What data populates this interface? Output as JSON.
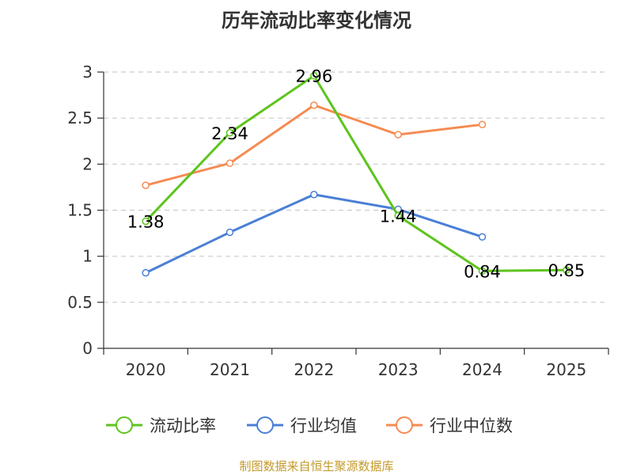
{
  "chart_data": {
    "type": "line",
    "title": "历年流动比率变化情况",
    "categories": [
      "2020",
      "2021",
      "2022",
      "2023",
      "2024",
      "2025"
    ],
    "ylim": [
      0,
      3
    ],
    "yticks": [
      "0",
      "0.5",
      "1",
      "1.5",
      "2",
      "2.5",
      "3"
    ],
    "ytick_values": [
      0,
      0.5,
      1,
      1.5,
      2,
      2.5,
      3
    ],
    "grid": true,
    "legend_position": "bottom",
    "series": [
      {
        "name": "流动比率",
        "color": "#5dc41d",
        "values": [
          1.38,
          2.34,
          2.96,
          1.44,
          0.84,
          0.85
        ],
        "labels": [
          "1.38",
          "2.34",
          "2.96",
          "1.44",
          "0.84",
          "0.85"
        ]
      },
      {
        "name": "行业均值",
        "color": "#4a7fd6",
        "values": [
          0.82,
          1.26,
          1.67,
          1.51,
          1.21,
          null
        ]
      },
      {
        "name": "行业中位数",
        "color": "#f58b52",
        "values": [
          1.77,
          2.01,
          2.64,
          2.32,
          2.43,
          null
        ]
      }
    ]
  },
  "footer": {
    "source": "制图数据来自恒生聚源数据库"
  }
}
